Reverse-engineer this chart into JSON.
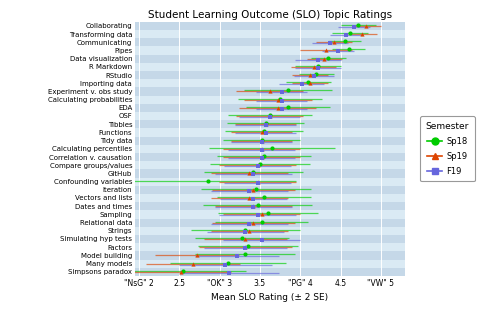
{
  "title": "Student Learning Outcome (SLO) Topic Ratings",
  "xlabel": "Mean SLO Rating (± 2 SE)",
  "xlim": [
    1.95,
    5.3
  ],
  "xticks": [
    2,
    2.5,
    3,
    3.5,
    4,
    4.5,
    5
  ],
  "xticklabels": [
    "\"NsG\" 2",
    "2.5",
    "\"OK\" 3",
    "3.5",
    "\"PG\" 4",
    "4.5",
    "\"VW\" 5"
  ],
  "semesters": [
    "Sp18",
    "Sp19",
    "F19"
  ],
  "colors": [
    "#00cc00",
    "#dd4400",
    "#6666dd"
  ],
  "markers": [
    "o",
    "^",
    "s"
  ],
  "slo_labels": [
    "Collaborating",
    "Transforming data",
    "Communicating",
    "Pipes",
    "Data visualization",
    "R Markdown",
    "RStudio",
    "Importing data",
    "Experiment v. obs study",
    "Calculating probabilities",
    "EDA",
    "OSF",
    "Tibbles",
    "Functions",
    "Tidy data",
    "Calculating percentiles",
    "Correlation v. causation",
    "Compare groups/values",
    "GitHub",
    "Confounding variables",
    "Iteration",
    "Vectors and lists",
    "Dates and times",
    "Sampling",
    "Relational data",
    "Strings",
    "Simulating hyp tests",
    "Factors",
    "Model building",
    "Many models",
    "Simpsons paradox"
  ],
  "data": {
    "Sp18": {
      "means": [
        4.72,
        4.62,
        4.55,
        4.6,
        4.35,
        4.22,
        4.2,
        4.1,
        3.85,
        3.75,
        3.85,
        3.62,
        3.57,
        3.55,
        3.52,
        3.65,
        3.55,
        3.5,
        3.42,
        2.85,
        3.45,
        3.55,
        3.47,
        3.6,
        3.52,
        3.32,
        3.28,
        3.35,
        3.32,
        3.1,
        2.55
      ],
      "se2": [
        0.22,
        0.22,
        0.2,
        0.2,
        0.22,
        0.28,
        0.22,
        0.28,
        0.55,
        0.52,
        0.52,
        0.52,
        0.48,
        0.48,
        0.48,
        0.78,
        0.58,
        0.62,
        0.62,
        1.1,
        0.68,
        0.58,
        0.68,
        0.62,
        0.58,
        0.68,
        0.58,
        0.62,
        0.62,
        0.72,
        0.78
      ]
    },
    "Sp19": {
      "means": [
        4.82,
        4.77,
        4.42,
        4.32,
        4.3,
        4.17,
        4.12,
        4.12,
        3.62,
        3.72,
        3.72,
        3.62,
        3.57,
        3.52,
        3.52,
        3.52,
        3.52,
        3.47,
        3.37,
        3.47,
        3.42,
        3.37,
        3.42,
        3.52,
        3.42,
        3.37,
        3.32,
        3.32,
        2.72,
        2.67,
        2.52
      ],
      "se2": [
        0.18,
        0.18,
        0.22,
        0.32,
        0.22,
        0.28,
        0.22,
        0.22,
        0.42,
        0.42,
        0.48,
        0.42,
        0.38,
        0.38,
        0.38,
        0.48,
        0.48,
        0.48,
        0.48,
        0.48,
        0.52,
        0.48,
        0.48,
        0.48,
        0.52,
        0.48,
        0.52,
        0.58,
        0.52,
        0.58,
        0.62
      ]
    },
    "F19": {
      "means": [
        4.67,
        4.57,
        4.37,
        4.47,
        4.22,
        4.22,
        4.17,
        4.02,
        3.77,
        3.77,
        3.77,
        3.62,
        3.57,
        3.57,
        3.52,
        3.52,
        3.52,
        3.47,
        3.42,
        3.47,
        3.37,
        3.42,
        3.42,
        3.47,
        3.37,
        3.32,
        3.52,
        3.32,
        3.22,
        3.07,
        3.12
      ],
      "se2": [
        0.2,
        0.2,
        0.22,
        0.2,
        0.28,
        0.28,
        0.25,
        0.28,
        0.32,
        0.32,
        0.32,
        0.38,
        0.38,
        0.38,
        0.38,
        0.42,
        0.42,
        0.42,
        0.48,
        0.42,
        0.48,
        0.42,
        0.48,
        0.48,
        0.48,
        0.48,
        0.48,
        0.52,
        0.52,
        0.58,
        0.62
      ]
    }
  },
  "legend_title": "Semester",
  "row_colors": [
    "#c5d8e8",
    "#daeaf4"
  ]
}
